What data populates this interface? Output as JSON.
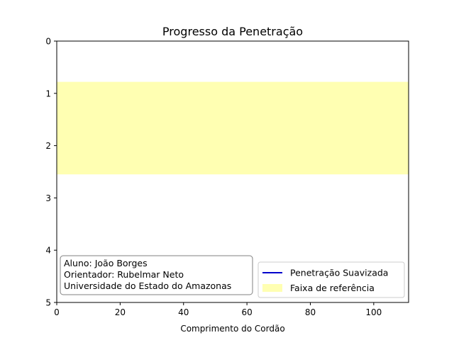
{
  "chart_data": {
    "type": "line",
    "title": "Progresso da Penetração",
    "xlabel": "Comprimento do Cordão",
    "ylabel": "",
    "xlim": [
      0,
      111
    ],
    "ylim": [
      5,
      0
    ],
    "y_inverted": true,
    "xticks": [
      0,
      20,
      40,
      60,
      80,
      100
    ],
    "yticks": [
      0,
      1,
      2,
      3,
      4,
      5
    ],
    "grid": false,
    "series": [
      {
        "name": "Penetração Suavizada",
        "color": "#0000cc",
        "x": [],
        "y": []
      }
    ],
    "reference_band": {
      "name": "Faixa de referência",
      "color": "#ffff66",
      "opacity": 0.5,
      "y_from": 0.78,
      "y_to": 2.55
    },
    "legend_placement": "lower right",
    "annotation": {
      "lines": [
        "Aluno: João Borges",
        "Orientador: Rubelmar Neto",
        "Universidade do Estado do Amazonas"
      ],
      "placement": "lower left"
    }
  }
}
